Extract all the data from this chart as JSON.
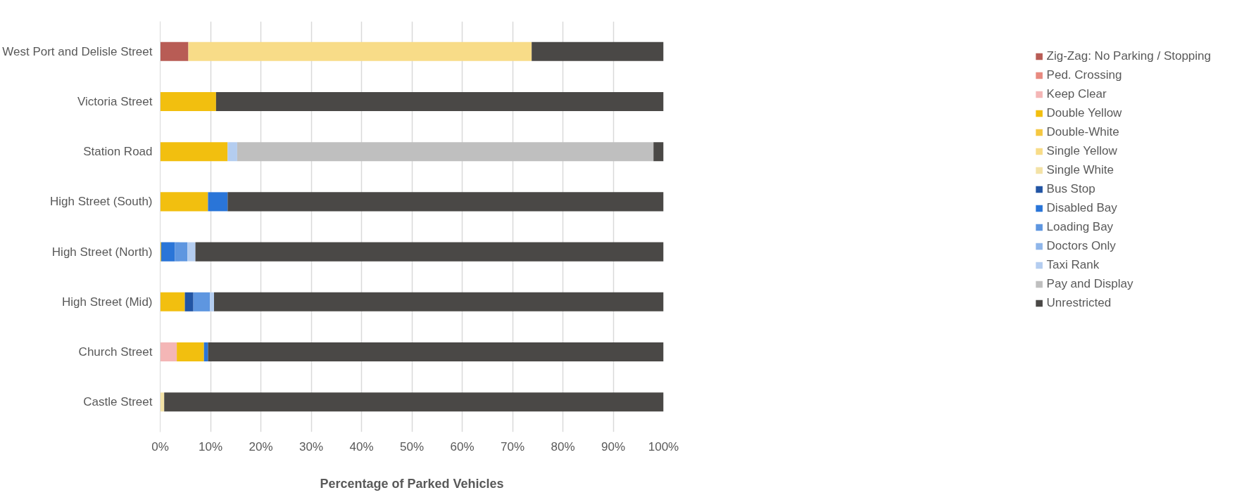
{
  "chart_data": {
    "type": "bar",
    "orientation": "horizontal",
    "stacked": true,
    "xlabel": "Percentage of Parked Vehicles",
    "categories": [
      "West Port and Delisle Street",
      "Victoria Street",
      "Station Road",
      "High Street (South)",
      "High Street (North)",
      "High Street (Mid)",
      "Church Street",
      "Castle Street"
    ],
    "series": [
      {
        "name": "Zig-Zag: No Parking / Stopping",
        "color": "#b85c55",
        "values": [
          5.6,
          0,
          0,
          0,
          0,
          0,
          0,
          0
        ]
      },
      {
        "name": "Ped. Crossing",
        "color": "#e88a80",
        "values": [
          0,
          0,
          0,
          0,
          0,
          0,
          0,
          0
        ]
      },
      {
        "name": "Keep Clear",
        "color": "#f4b6b6",
        "values": [
          0,
          0,
          0,
          0,
          0,
          0,
          3.3,
          0
        ]
      },
      {
        "name": "Double Yellow",
        "color": "#f2bf0f",
        "values": [
          0,
          11.1,
          13.4,
          9.5,
          0.2,
          4.9,
          5.4,
          0
        ]
      },
      {
        "name": "Double-White",
        "color": "#f5c842",
        "values": [
          0,
          0,
          0,
          0,
          0,
          0,
          0,
          0
        ]
      },
      {
        "name": "Single Yellow",
        "color": "#f8dc88",
        "values": [
          68.2,
          0,
          0,
          0,
          0,
          0,
          0,
          0
        ]
      },
      {
        "name": "Single White",
        "color": "#f3e2a6",
        "values": [
          0,
          0,
          0,
          0,
          0,
          0,
          0,
          0.8
        ]
      },
      {
        "name": "Bus Stop",
        "color": "#2255a4",
        "values": [
          0,
          0,
          0,
          0,
          0,
          1.7,
          0,
          0
        ]
      },
      {
        "name": "Disabled Bay",
        "color": "#2a75d8",
        "values": [
          0,
          0,
          0,
          3.9,
          2.7,
          0,
          0.8,
          0
        ]
      },
      {
        "name": "Loading Bay",
        "color": "#5e96e0",
        "values": [
          0,
          0,
          0,
          0,
          2.5,
          3.3,
          0,
          0
        ]
      },
      {
        "name": "Doctors Only",
        "color": "#8fb6ea",
        "values": [
          0,
          0,
          0,
          0,
          0,
          0,
          0,
          0
        ]
      },
      {
        "name": "Taxi Rank",
        "color": "#b4cdf0",
        "values": [
          0,
          0,
          1.9,
          0,
          1.6,
          0.8,
          0,
          0
        ]
      },
      {
        "name": "Pay and Display",
        "color": "#bfbfbf",
        "values": [
          0,
          0,
          82.7,
          0,
          0,
          0,
          0,
          0
        ]
      },
      {
        "name": "Unrestricted",
        "color": "#4a4846",
        "values": [
          26.2,
          88.9,
          2.0,
          86.6,
          93.0,
          89.3,
          90.5,
          99.2
        ]
      }
    ],
    "xlim": [
      0,
      100
    ],
    "xticks": [
      {
        "value": 0,
        "label": "0%"
      },
      {
        "value": 10,
        "label": "10%"
      },
      {
        "value": 20,
        "label": "20%"
      },
      {
        "value": 30,
        "label": "30%"
      },
      {
        "value": 40,
        "label": "40%"
      },
      {
        "value": 50,
        "label": "50%"
      },
      {
        "value": 60,
        "label": "60%"
      },
      {
        "value": 70,
        "label": "70%"
      },
      {
        "value": 80,
        "label": "80%"
      },
      {
        "value": 90,
        "label": "90%"
      },
      {
        "value": 100,
        "label": "100%"
      }
    ],
    "grid": "x",
    "legend": "right"
  }
}
